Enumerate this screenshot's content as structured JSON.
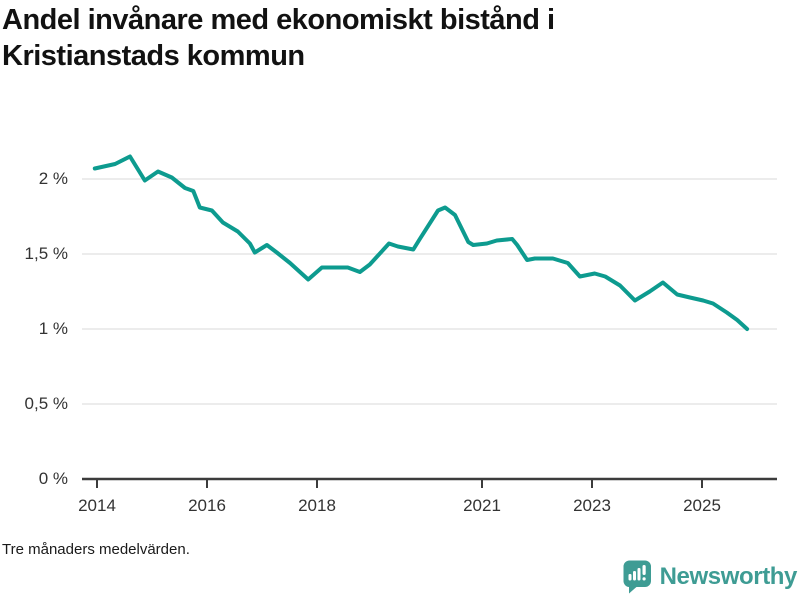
{
  "title": "Andel invånare med ekonomiskt bistånd i Kristianstads kommun",
  "footnote": "Tre månaders medelvärden.",
  "logo": {
    "text": "Newsworthy",
    "color": "#3e9c94"
  },
  "colors": {
    "line": "#0d9b8f",
    "grid": "#e0e0e0",
    "axis": "#3c3c3c",
    "tick_text": "#333333",
    "title_text": "#121212"
  },
  "chart_data": {
    "type": "line",
    "title": "Andel invånare med ekonomiskt bistånd i Kristianstads kommun",
    "subtitle": "Tre månaders medelvärden.",
    "unit": "%",
    "xlim": [
      2013.9,
      2025.9
    ],
    "ylim": [
      0,
      2.25
    ],
    "grid": "horizontal",
    "legend": "none",
    "y_ticks": [
      {
        "value": 0,
        "label": "0 %"
      },
      {
        "value": 0.5,
        "label": "0,5 %"
      },
      {
        "value": 1,
        "label": "1 %"
      },
      {
        "value": 1.5,
        "label": "1,5 %"
      },
      {
        "value": 2,
        "label": "2 %"
      }
    ],
    "x_ticks": [
      {
        "year": 2014,
        "label": "2014"
      },
      {
        "year": 2016,
        "label": "2016"
      },
      {
        "year": 2018,
        "label": "2018"
      },
      {
        "year": 2021,
        "label": "2021"
      },
      {
        "year": 2023,
        "label": "2023"
      },
      {
        "year": 2025,
        "label": "2025"
      }
    ],
    "series": [
      {
        "name": "Andel invånare med ekonomiskt bistånd",
        "points": [
          [
            2013.96,
            2.07
          ],
          [
            2014.33,
            2.1
          ],
          [
            2014.6,
            2.15
          ],
          [
            2014.87,
            1.99
          ],
          [
            2015.11,
            2.05
          ],
          [
            2015.36,
            2.01
          ],
          [
            2015.6,
            1.94
          ],
          [
            2015.75,
            1.92
          ],
          [
            2015.87,
            1.81
          ],
          [
            2016.09,
            1.79
          ],
          [
            2016.29,
            1.71
          ],
          [
            2016.56,
            1.65
          ],
          [
            2016.78,
            1.57
          ],
          [
            2016.87,
            1.51
          ],
          [
            2017.09,
            1.56
          ],
          [
            2017.27,
            1.51
          ],
          [
            2017.51,
            1.44
          ],
          [
            2017.84,
            1.33
          ],
          [
            2018.09,
            1.41
          ],
          [
            2018.56,
            1.41
          ],
          [
            2018.78,
            1.38
          ],
          [
            2018.96,
            1.43
          ],
          [
            2019.31,
            1.57
          ],
          [
            2019.47,
            1.55
          ],
          [
            2019.75,
            1.53
          ],
          [
            2019.87,
            1.6
          ],
          [
            2020.2,
            1.79
          ],
          [
            2020.33,
            1.81
          ],
          [
            2020.51,
            1.76
          ],
          [
            2020.75,
            1.58
          ],
          [
            2020.84,
            1.56
          ],
          [
            2021.09,
            1.57
          ],
          [
            2021.27,
            1.59
          ],
          [
            2021.55,
            1.6
          ],
          [
            2021.64,
            1.56
          ],
          [
            2021.82,
            1.46
          ],
          [
            2021.96,
            1.47
          ],
          [
            2022.29,
            1.47
          ],
          [
            2022.56,
            1.44
          ],
          [
            2022.78,
            1.35
          ],
          [
            2023.05,
            1.37
          ],
          [
            2023.24,
            1.35
          ],
          [
            2023.51,
            1.29
          ],
          [
            2023.78,
            1.19
          ],
          [
            2024.05,
            1.25
          ],
          [
            2024.29,
            1.31
          ],
          [
            2024.55,
            1.23
          ],
          [
            2024.78,
            1.21
          ],
          [
            2025.02,
            1.19
          ],
          [
            2025.2,
            1.17
          ],
          [
            2025.45,
            1.11
          ],
          [
            2025.64,
            1.06
          ],
          [
            2025.82,
            1.0
          ]
        ]
      }
    ]
  }
}
